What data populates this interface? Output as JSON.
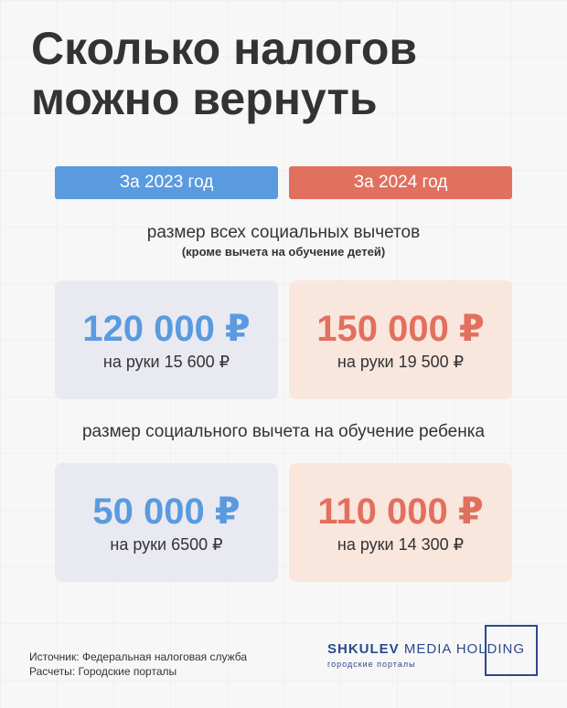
{
  "title": {
    "line1": "Сколько налогов",
    "line2": "можно вернуть"
  },
  "years": {
    "left": "За 2023 год",
    "right": "За 2024 год"
  },
  "colors": {
    "left_accent": "#5a9be0",
    "right_accent": "#e2705f",
    "left_card_bg": "#e9eaf1",
    "right_card_bg": "#f9e6dd",
    "logo": "#2b4a8a"
  },
  "section1": {
    "label": "размер всех социальных вычетов",
    "sub": "(кроме вычета на обучение детей)",
    "left": {
      "amount": "120 000 ₽",
      "net": "на руки 15 600 ₽"
    },
    "right": {
      "amount": "150 000 ₽",
      "net": "на руки 19 500 ₽"
    }
  },
  "section2": {
    "label": "размер социального вычета на обучение ребенка",
    "left": {
      "amount": "50 000 ₽",
      "net": "на руки 6500 ₽"
    },
    "right": {
      "amount": "110 000 ₽",
      "net": "на руки 14 300 ₽"
    }
  },
  "footer": {
    "source": "Источник: Федеральная налоговая служба",
    "calc": "Расчеты: Городские порталы"
  },
  "logo": {
    "brand": "SHKULEV",
    "rest": "MEDIA HOLDING",
    "sub": "городские порталы"
  }
}
